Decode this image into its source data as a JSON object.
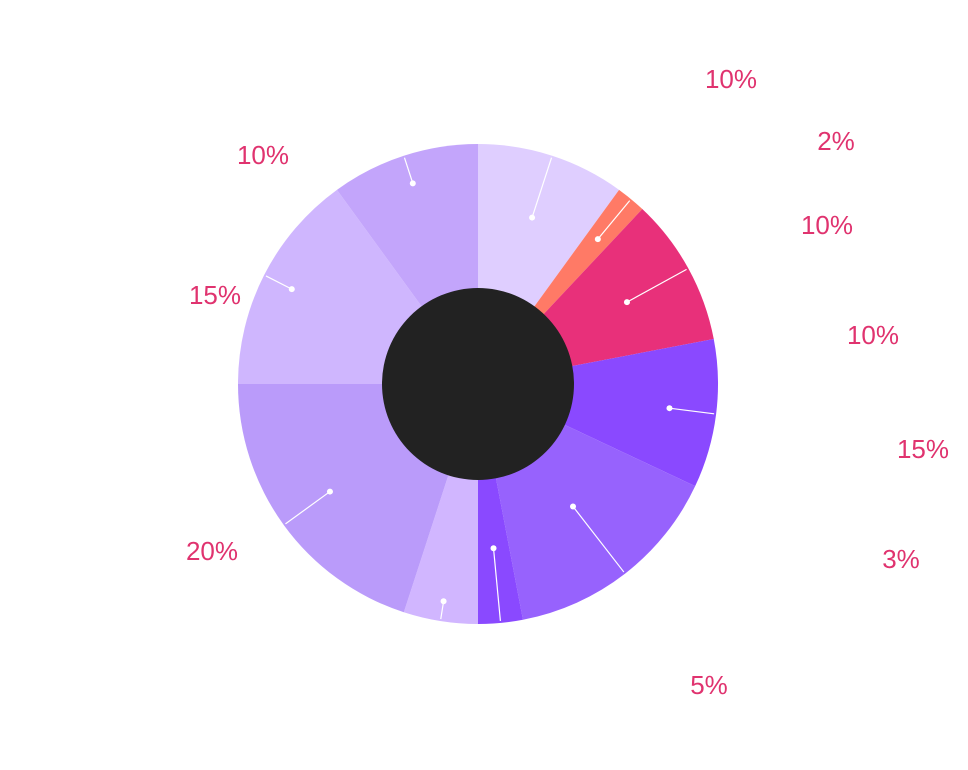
{
  "chart_data": {
    "type": "pie",
    "variant": "donut",
    "title": "",
    "center_color": "#222222",
    "label_color": "#E0336F",
    "slices": [
      {
        "label": "10%",
        "value": 10,
        "color": "#DFCEFF"
      },
      {
        "label": "2%",
        "value": 2,
        "color": "#FF7A66"
      },
      {
        "label": "10%",
        "value": 10,
        "color": "#E8307A"
      },
      {
        "label": "10%",
        "value": 10,
        "color": "#8A49FF"
      },
      {
        "label": "15%",
        "value": 15,
        "color": "#9762FD"
      },
      {
        "label": "3%",
        "value": 3,
        "color": "#8A49FF"
      },
      {
        "label": "5%",
        "value": 5,
        "color": "#D1B6FF"
      },
      {
        "label": "20%",
        "value": 20,
        "color": "#BA9BFA"
      },
      {
        "label": "15%",
        "value": 15,
        "color": "#CFB6FE"
      },
      {
        "label": "10%",
        "value": 10,
        "color": "#C3A5FB"
      }
    ]
  }
}
